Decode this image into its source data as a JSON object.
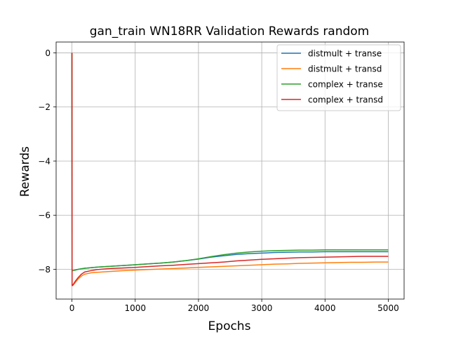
{
  "chart_data": {
    "type": "line",
    "title": "gan_train WN18RR Validation Rewards random",
    "xlabel": "Epochs",
    "ylabel": "Rewards",
    "xlim": [
      -250,
      5250
    ],
    "ylim": [
      -9.1,
      0.4
    ],
    "xticks": [
      0,
      1000,
      2000,
      3000,
      4000,
      5000
    ],
    "xtick_labels": [
      "0",
      "1000",
      "2000",
      "3000",
      "4000",
      "5000"
    ],
    "yticks": [
      0,
      -2,
      -4,
      -6,
      -8
    ],
    "ytick_labels": [
      "0",
      "−2",
      "−4",
      "−6",
      "−8"
    ],
    "grid": true,
    "legend_position": "top-right",
    "series": [
      {
        "name": "distmult + transe",
        "color": "#1f77b4",
        "x": [
          0,
          2,
          10,
          50,
          100,
          200,
          400,
          600,
          800,
          1000,
          1200,
          1400,
          1600,
          1800,
          2000,
          2200,
          2400,
          2600,
          2800,
          3000,
          3200,
          3400,
          3600,
          3800,
          4000,
          4200,
          4400,
          4600,
          4800,
          5000
        ],
        "y": [
          0,
          -8.05,
          -8.05,
          -8.03,
          -8.0,
          -7.96,
          -7.92,
          -7.89,
          -7.86,
          -7.83,
          -7.8,
          -7.77,
          -7.73,
          -7.68,
          -7.62,
          -7.55,
          -7.5,
          -7.45,
          -7.42,
          -7.4,
          -7.38,
          -7.37,
          -7.36,
          -7.36,
          -7.35,
          -7.35,
          -7.35,
          -7.35,
          -7.35,
          -7.35
        ]
      },
      {
        "name": "distmult + transd",
        "color": "#ff7f0e",
        "x": [
          0,
          2,
          10,
          50,
          100,
          150,
          200,
          300,
          400,
          600,
          800,
          1000,
          1200,
          1400,
          1600,
          1800,
          2000,
          2200,
          2400,
          2600,
          2800,
          3000,
          3200,
          3400,
          3600,
          3800,
          4000,
          4200,
          4400,
          4600,
          4800,
          5000
        ],
        "y": [
          0,
          -8.6,
          -8.6,
          -8.5,
          -8.35,
          -8.25,
          -8.18,
          -8.13,
          -8.11,
          -8.08,
          -8.05,
          -8.03,
          -8.01,
          -7.99,
          -7.97,
          -7.95,
          -7.93,
          -7.91,
          -7.89,
          -7.87,
          -7.85,
          -7.83,
          -7.81,
          -7.8,
          -7.78,
          -7.77,
          -7.76,
          -7.75,
          -7.74,
          -7.74,
          -7.73,
          -7.73
        ]
      },
      {
        "name": "complex + transe",
        "color": "#2ca02c",
        "x": [
          0,
          2,
          10,
          50,
          100,
          200,
          400,
          600,
          800,
          1000,
          1200,
          1400,
          1600,
          1800,
          2000,
          2200,
          2400,
          2600,
          2800,
          3000,
          3200,
          3400,
          3600,
          3800,
          4000,
          4200,
          4400,
          4600,
          4800,
          5000
        ],
        "y": [
          0,
          -8.05,
          -8.05,
          -8.03,
          -8.0,
          -7.96,
          -7.92,
          -7.89,
          -7.86,
          -7.83,
          -7.8,
          -7.77,
          -7.73,
          -7.68,
          -7.61,
          -7.53,
          -7.46,
          -7.4,
          -7.36,
          -7.33,
          -7.31,
          -7.3,
          -7.29,
          -7.29,
          -7.28,
          -7.28,
          -7.28,
          -7.28,
          -7.28,
          -7.28
        ]
      },
      {
        "name": "complex + transd",
        "color": "#d62728",
        "x": [
          0,
          2,
          10,
          50,
          100,
          150,
          200,
          300,
          400,
          600,
          800,
          1000,
          1200,
          1400,
          1600,
          1800,
          2000,
          2200,
          2400,
          2600,
          2800,
          3000,
          3200,
          3400,
          3600,
          3800,
          4000,
          4200,
          4400,
          4600,
          4800,
          5000
        ],
        "y": [
          0,
          -8.6,
          -8.6,
          -8.45,
          -8.3,
          -8.18,
          -8.1,
          -8.05,
          -8.01,
          -7.97,
          -7.95,
          -7.93,
          -7.9,
          -7.87,
          -7.85,
          -7.82,
          -7.79,
          -7.76,
          -7.73,
          -7.69,
          -7.66,
          -7.63,
          -7.61,
          -7.59,
          -7.57,
          -7.56,
          -7.55,
          -7.54,
          -7.53,
          -7.52,
          -7.52,
          -7.52
        ]
      }
    ]
  }
}
